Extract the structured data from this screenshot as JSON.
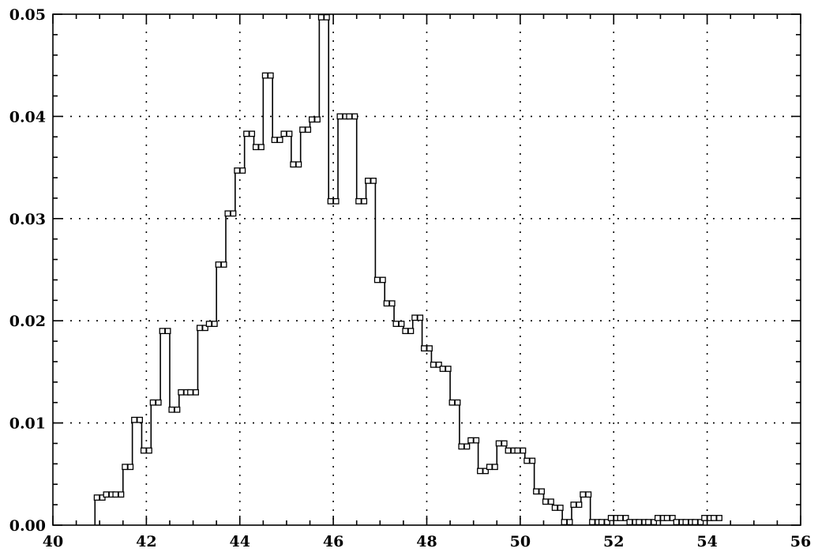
{
  "chart_data": {
    "type": "line",
    "style": "step-histogram",
    "title": "",
    "xlabel": "",
    "ylabel": "",
    "xlim": [
      40,
      56
    ],
    "ylim": [
      0,
      0.05
    ],
    "x_ticks": [
      "40",
      "42",
      "44",
      "46",
      "48",
      "50",
      "52",
      "54",
      "56"
    ],
    "y_ticks": [
      "0.00",
      "0.01",
      "0.02",
      "0.03",
      "0.04",
      "0.05"
    ],
    "x_tick_values": [
      40,
      42,
      44,
      46,
      48,
      50,
      52,
      54,
      56
    ],
    "y_tick_values": [
      0,
      0.01,
      0.02,
      0.03,
      0.04,
      0.05
    ],
    "grid": true,
    "bin_width": 0.2,
    "series": [
      {
        "bin_starts": [
          40.9,
          41.1,
          41.3,
          41.5,
          41.7,
          41.9,
          42.1,
          42.3,
          42.5,
          42.7,
          42.9,
          43.1,
          43.3,
          43.5,
          43.7,
          43.9,
          44.1,
          44.3,
          44.5,
          44.7,
          44.9,
          45.1,
          45.3,
          45.5,
          45.7,
          45.9,
          46.1,
          46.3,
          46.5,
          46.7,
          46.9,
          47.1,
          47.3,
          47.5,
          47.7,
          47.9,
          48.1,
          48.3,
          48.5,
          48.7,
          48.9,
          49.1,
          49.3,
          49.5,
          49.7,
          49.9,
          50.1,
          50.3,
          50.5,
          50.7,
          50.9,
          51.1,
          51.3,
          51.5,
          51.7,
          51.9,
          52.1,
          52.3,
          52.5,
          52.7,
          52.9,
          53.1,
          53.3,
          53.5,
          53.7,
          53.9,
          54.1
        ],
        "values": [
          0.0027,
          0.003,
          0.003,
          0.0057,
          0.0103,
          0.0073,
          0.012,
          0.019,
          0.0113,
          0.013,
          0.013,
          0.0193,
          0.0197,
          0.0255,
          0.0305,
          0.0347,
          0.0383,
          0.037,
          0.044,
          0.0377,
          0.0383,
          0.0353,
          0.0387,
          0.0397,
          0.0497,
          0.0317,
          0.04,
          0.04,
          0.0317,
          0.0337,
          0.024,
          0.0217,
          0.0197,
          0.019,
          0.0203,
          0.0173,
          0.0157,
          0.0153,
          0.012,
          0.0077,
          0.0083,
          0.0053,
          0.0057,
          0.008,
          0.0073,
          0.0073,
          0.0063,
          0.0033,
          0.0023,
          0.0017,
          0.0003,
          0.002,
          0.003,
          0.0003,
          0.0003,
          0.0007,
          0.0007,
          0.0003,
          0.0003,
          0.0003,
          0.0007,
          0.0007,
          0.0003,
          0.0003,
          0.0003,
          0.0007,
          0.0007
        ]
      }
    ]
  },
  "colors": {
    "background": "#ffffff",
    "ink": "#000000",
    "marker_fill": "#ffffff"
  }
}
